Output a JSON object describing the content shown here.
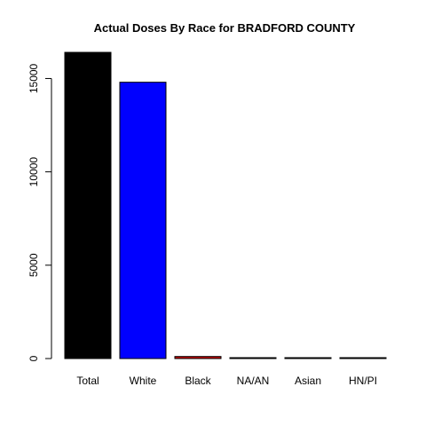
{
  "chart_data": {
    "type": "bar",
    "title": "Actual Doses By Race for BRADFORD COUNTY",
    "xlabel": "",
    "ylabel": "",
    "categories": [
      "Total",
      "White",
      "Black",
      "NA/AN",
      "Asian",
      "HN/PI"
    ],
    "values": [
      16400,
      14800,
      110,
      15,
      20,
      10
    ],
    "colors": [
      "#000000",
      "#0000ff",
      "#cc0000",
      "#00aa00",
      "#00aaaa",
      "#aa00aa"
    ],
    "ylim": [
      0,
      16400
    ],
    "yticks": [
      0,
      5000,
      10000,
      15000
    ],
    "grid": false,
    "legend": "none"
  }
}
